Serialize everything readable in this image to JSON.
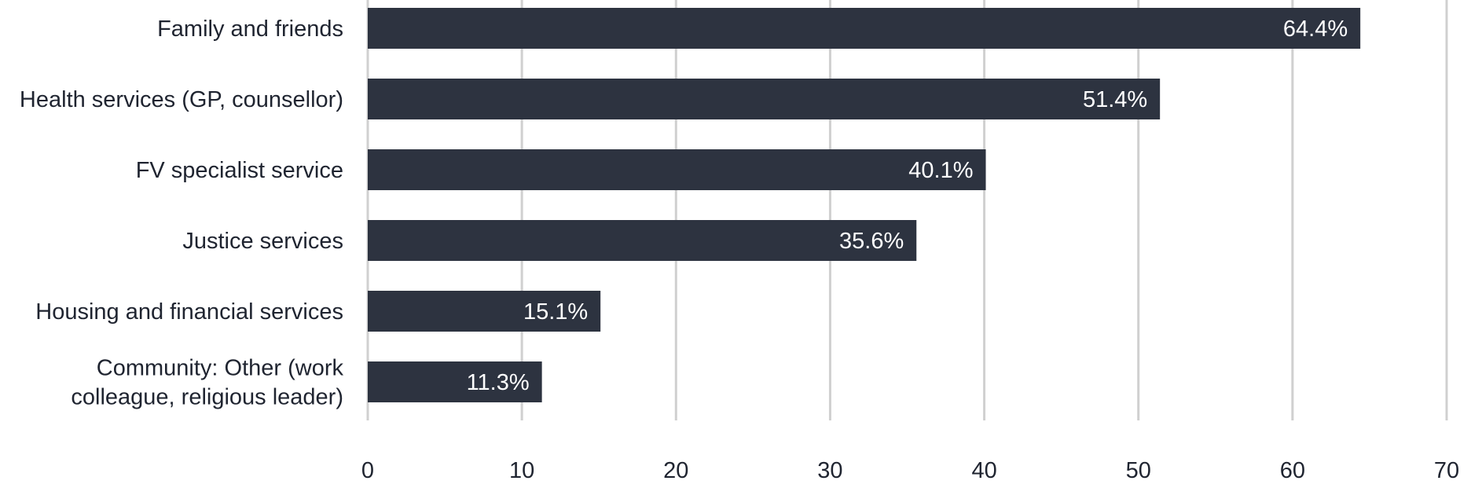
{
  "chart_data": {
    "type": "bar",
    "orientation": "horizontal",
    "title": "",
    "xlabel": "",
    "ylabel": "",
    "categories": [
      [
        "Family and friends"
      ],
      [
        "Health services (GP, counsellor)"
      ],
      [
        "FV specialist service"
      ],
      [
        "Justice services"
      ],
      [
        "Housing and financial services"
      ],
      [
        "Community: Other (work",
        "colleague, religious leader)"
      ]
    ],
    "values": [
      64.4,
      51.4,
      40.1,
      35.6,
      15.1,
      11.3
    ],
    "value_labels": [
      "64.4%",
      "51.4%",
      "40.1%",
      "35.6%",
      "15.1%",
      "11.3%"
    ],
    "xlim": [
      0,
      70
    ],
    "xticks": [
      0,
      10,
      20,
      30,
      40,
      50,
      60,
      70
    ],
    "xtick_labels": [
      "0",
      "10",
      "20",
      "30",
      "40",
      "50",
      "60",
      "70"
    ],
    "grid": true,
    "legend": "none",
    "colors": {
      "bar": "#2d3340",
      "grid": "#d0d0d0",
      "value_label": "#ffffff",
      "text": "#1f2430"
    }
  }
}
